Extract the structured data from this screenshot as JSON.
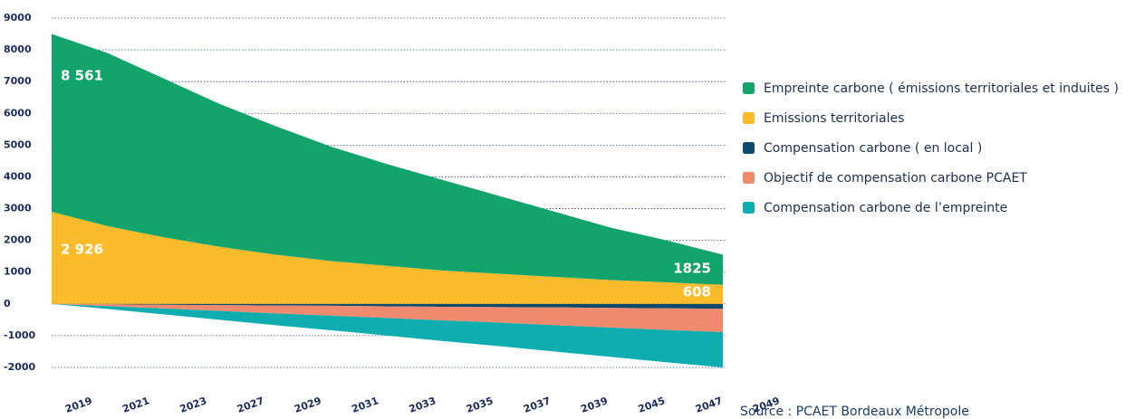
{
  "chart_data": {
    "type": "stacked_area",
    "categories": [
      "2019",
      "2021",
      "2023",
      "2027",
      "2029",
      "2031",
      "2033",
      "2035",
      "2037",
      "2039",
      "2045",
      "2047",
      "2049"
    ],
    "series": [
      {
        "name": "Empreinte carbone ( émissions territoriales et induites )",
        "color": "#12a46c",
        "values": [
          5600,
          5450,
          5000,
          4500,
          4050,
          3600,
          3200,
          2850,
          2450,
          2050,
          1650,
          1320,
          950
        ]
      },
      {
        "name": "Emissions territoriales",
        "color": "#fbbb2a",
        "values": [
          2900,
          2450,
          2100,
          1800,
          1550,
          1350,
          1200,
          1050,
          950,
          850,
          750,
          680,
          600
        ]
      },
      {
        "name": "Compensation carbone ( en local )",
        "color": "#0d4a6b",
        "values": [
          0,
          -10,
          -25,
          -40,
          -50,
          -60,
          -75,
          -90,
          -100,
          -110,
          -125,
          -140,
          -150
        ]
      },
      {
        "name": "Objectif de compensation carbone PCAET",
        "color": "#f08a6e",
        "values": [
          0,
          -60,
          -120,
          -180,
          -250,
          -310,
          -370,
          -430,
          -490,
          -560,
          -620,
          -680,
          -740
        ]
      },
      {
        "name": "Compensation carbone de l’empreinte",
        "color": "#10adb0",
        "values": [
          0,
          -90,
          -185,
          -280,
          -370,
          -460,
          -555,
          -650,
          -740,
          -830,
          -925,
          -1020,
          -1110
        ]
      }
    ],
    "annotations": [
      "8 561",
      "2 926",
      "1825",
      "608"
    ],
    "source": "Source : PCAET Bordeaux Métropole",
    "ylim": [
      -2000,
      9000
    ],
    "yticks": [
      -2000,
      -1000,
      0,
      1000,
      2000,
      3000,
      4000,
      5000,
      6000,
      7000,
      8000,
      9000
    ],
    "grid": true,
    "legend": "right"
  }
}
